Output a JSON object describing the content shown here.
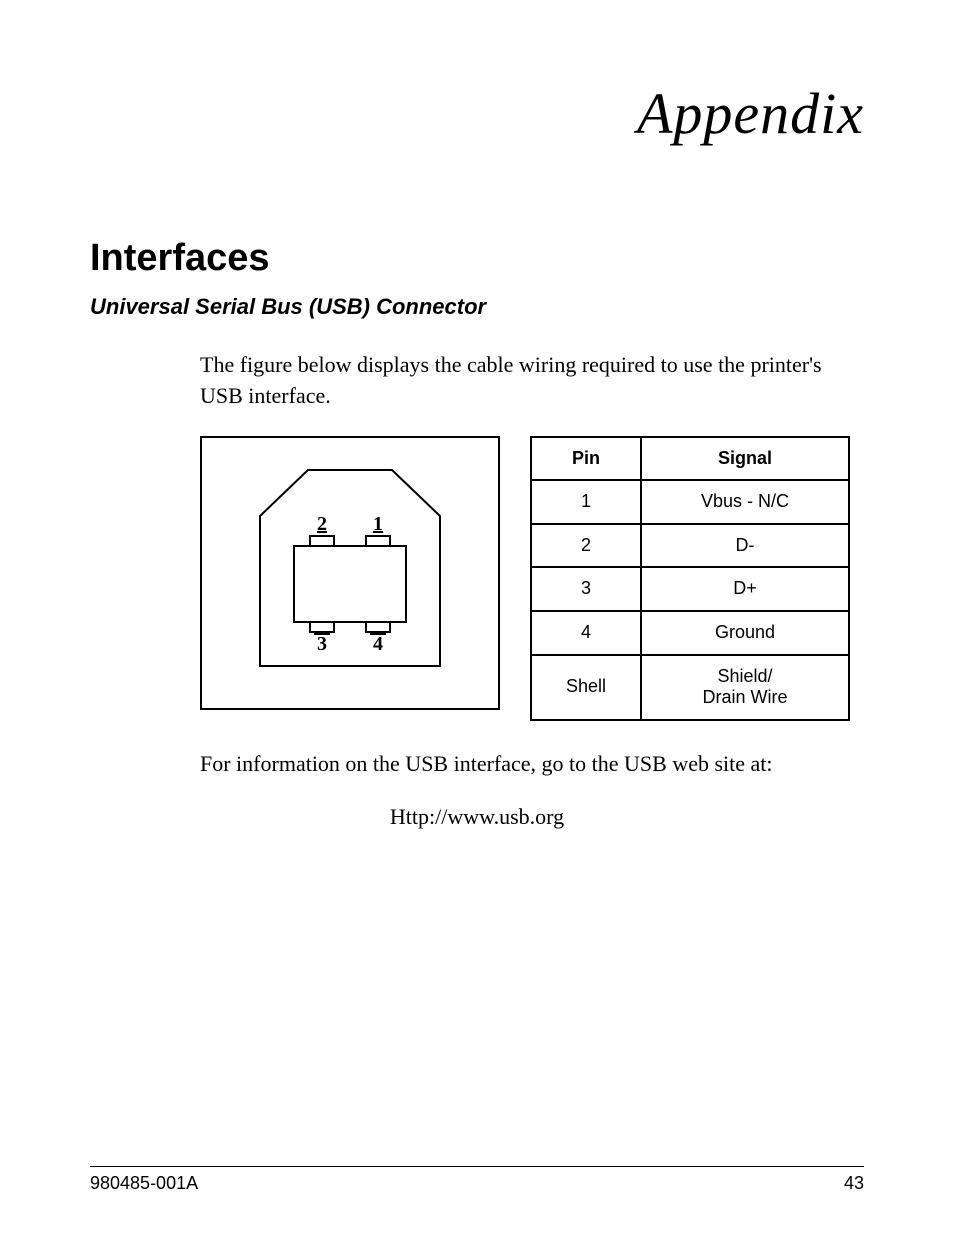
{
  "appendix_title": "Appendix",
  "section_heading": "Interfaces",
  "subheading": "Universal Serial Bus (USB) Connector",
  "intro_paragraph": "The figure below displays the cable wiring required to use the printer's USB interface.",
  "connector_diagram": {
    "type": "connector-pinout",
    "border_color": "#000000",
    "background_color": "#ffffff",
    "stroke_width": 2,
    "pin_labels": {
      "top_left": "2",
      "top_right": "1",
      "bottom_left": "3",
      "bottom_right": "4"
    },
    "label_font_family": "Times New Roman",
    "label_font_size": 20,
    "label_font_weight": "bold"
  },
  "pin_table": {
    "type": "table",
    "border_color": "#000000",
    "border_width": 2,
    "font_family": "Arial",
    "header_fontsize": 18,
    "cell_fontsize": 18,
    "columns": [
      "Pin",
      "Signal"
    ],
    "rows": [
      [
        "1",
        "Vbus - N/C"
      ],
      [
        "2",
        "D-"
      ],
      [
        "3",
        "D+"
      ],
      [
        "4",
        "Ground"
      ],
      [
        "Shell",
        "Shield/\nDrain Wire"
      ]
    ]
  },
  "outro_paragraph": "For information on the USB interface,  go to the USB web site at:",
  "url_text": "Http://www.usb.org",
  "footer": {
    "doc_number": "980485-001A",
    "page_number": "43"
  }
}
